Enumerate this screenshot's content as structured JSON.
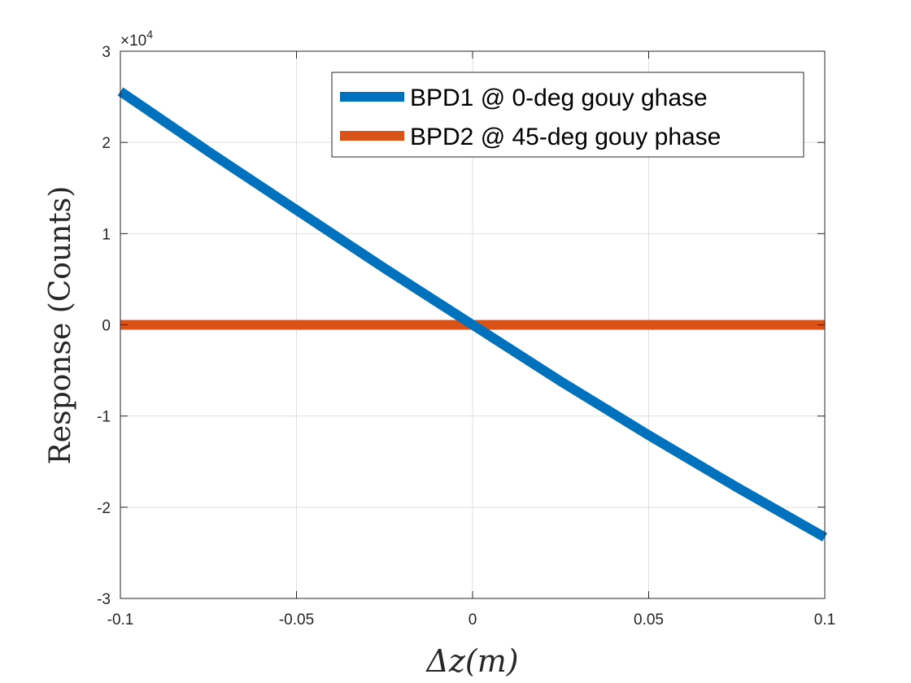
{
  "chart_data": {
    "type": "line",
    "xlabel": "Δz(m)",
    "ylabel": "Response (Counts)",
    "xlim": [
      -0.1,
      0.1
    ],
    "ylim": [
      -30000,
      30000
    ],
    "x_ticks": [
      -0.1,
      -0.05,
      0,
      0.05,
      0.1
    ],
    "x_tick_labels": [
      "-0.1",
      "-0.05",
      "0",
      "0.05",
      "0.1"
    ],
    "y_ticks": [
      -30000,
      -20000,
      -10000,
      0,
      10000,
      20000,
      30000
    ],
    "y_tick_labels": [
      "-3",
      "-2",
      "-1",
      "0",
      "1",
      "2",
      "3"
    ],
    "y_exponent_label": "×10",
    "y_exponent_power": "4",
    "grid": true,
    "legend_position": "top-right",
    "series": [
      {
        "name": "BPD1 @ 0-deg gouy ghase",
        "color": "#0072BD",
        "x": [
          -0.1,
          -0.075,
          -0.05,
          -0.025,
          0,
          0.025,
          0.05,
          0.075,
          0.1
        ],
        "y": [
          25600,
          19000,
          12600,
          6200,
          0,
          -6200,
          -12100,
          -17800,
          -23300
        ]
      },
      {
        "name": "BPD2 @ 45-deg gouy phase",
        "color": "#D95319",
        "x": [
          -0.1,
          -0.05,
          0,
          0.05,
          0.1
        ],
        "y": [
          0,
          0,
          0,
          0,
          0
        ]
      }
    ]
  }
}
